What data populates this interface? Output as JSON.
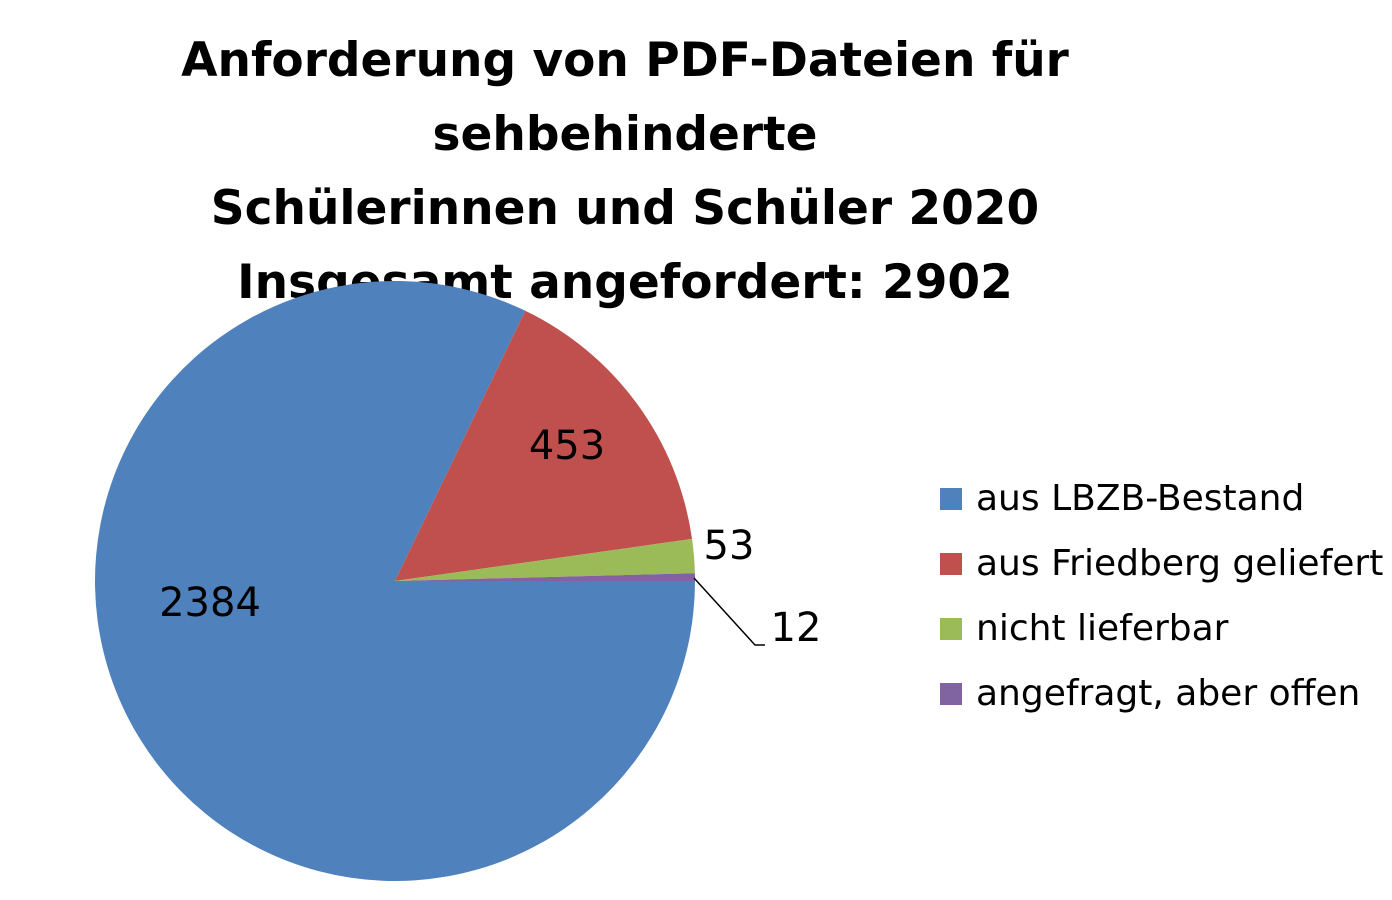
{
  "chart_data": {
    "type": "pie",
    "title": [
      "Anforderung von PDF-Dateien für sehbehinderte",
      "Schülerinnen und Schüler 2020",
      "Insgesamt angefordert: 2902"
    ],
    "categories": [
      "aus LBZB-Bestand",
      "aus Friedberg geliefert",
      "nicht lieferbar",
      "angefragt, aber offen"
    ],
    "values": [
      2384,
      453,
      53,
      12
    ],
    "data_labels": [
      "2384",
      "453",
      "53",
      "12"
    ],
    "colors": [
      "#4F81BD",
      "#C0504D",
      "#9BBB59",
      "#8064A2"
    ],
    "legend_position": "right"
  }
}
